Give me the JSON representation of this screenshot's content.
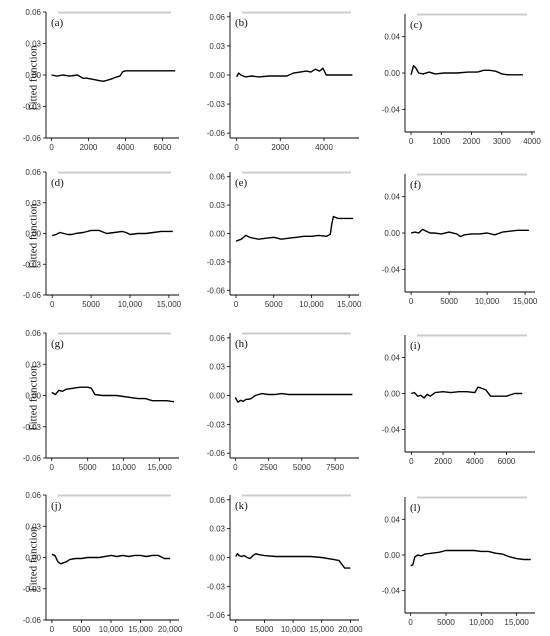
{
  "figure": {
    "ylabel": "Fitted function",
    "colors": {
      "line": "#000000",
      "axis": "#000000",
      "tick_text": "#333333",
      "rug": "#cccccc"
    }
  },
  "chart_data": [
    {
      "label": "(a)",
      "type": "line",
      "xlim": [
        -300,
        6900
      ],
      "ylim": [
        -0.06,
        0.06
      ],
      "xticks": [
        0,
        2000,
        4000,
        6000
      ],
      "xtick_labels": [
        "0",
        "2000",
        "4000",
        "6000"
      ],
      "yticks": [
        -0.06,
        -0.03,
        0,
        0.03,
        0.06
      ],
      "ytick_labels": [
        "-0.06",
        "-0.03",
        "0.00",
        "0.03",
        "0.06"
      ],
      "x": [
        0,
        300,
        600,
        1000,
        1400,
        1700,
        1900,
        2200,
        2500,
        2800,
        3000,
        3200,
        3500,
        3700,
        3850,
        4000,
        4500,
        5000,
        5500,
        6000,
        6500,
        6700
      ],
      "y": [
        0.0,
        -0.001,
        0.0,
        -0.001,
        0.0,
        -0.003,
        -0.003,
        -0.004,
        -0.005,
        -0.006,
        -0.005,
        -0.004,
        -0.002,
        -0.001,
        0.003,
        0.004,
        0.004,
        0.004,
        0.004,
        0.004,
        0.004,
        0.004
      ]
    },
    {
      "label": "(b)",
      "type": "line",
      "xlim": [
        -300,
        5600
      ],
      "ylim": [
        -0.065,
        0.065
      ],
      "xticks": [
        0,
        2000,
        4000
      ],
      "xtick_labels": [
        "0",
        "2000",
        "4000"
      ],
      "yticks": [
        -0.06,
        -0.03,
        0,
        0.03,
        0.06
      ],
      "ytick_labels": [
        "-0.06",
        "-0.03",
        "0.00",
        "0.03",
        "0.06"
      ],
      "x": [
        0,
        100,
        200,
        400,
        700,
        1000,
        1500,
        2000,
        2300,
        2600,
        2900,
        3200,
        3400,
        3600,
        3800,
        3950,
        4100,
        4500,
        5000,
        5300
      ],
      "y": [
        -0.002,
        0.002,
        0.0,
        -0.002,
        -0.001,
        -0.002,
        -0.001,
        -0.001,
        -0.001,
        0.002,
        0.003,
        0.004,
        0.003,
        0.006,
        0.004,
        0.007,
        0.0,
        0.0,
        0.0,
        0.0
      ]
    },
    {
      "label": "(c)",
      "type": "line",
      "xlim": [
        -200,
        4100
      ],
      "ylim": [
        -0.065,
        0.065
      ],
      "xticks": [
        0,
        1000,
        2000,
        3000,
        4000
      ],
      "xtick_labels": [
        "0",
        "1000",
        "2000",
        "3000",
        "4000"
      ],
      "yticks": [
        -0.04,
        0,
        0.04
      ],
      "ytick_labels": [
        "-0.04",
        "0.00",
        "0.04"
      ],
      "x": [
        0,
        80,
        150,
        250,
        400,
        600,
        800,
        1100,
        1500,
        1900,
        2200,
        2400,
        2600,
        2800,
        3000,
        3200,
        3500,
        3700
      ],
      "y": [
        -0.002,
        0.008,
        0.006,
        0.0,
        -0.001,
        0.001,
        -0.001,
        0.0,
        0.0,
        0.001,
        0.001,
        0.003,
        0.003,
        0.002,
        -0.001,
        -0.002,
        -0.002,
        -0.002
      ]
    },
    {
      "label": "(d)",
      "type": "line",
      "xlim": [
        -800,
        16300
      ],
      "ylim": [
        -0.06,
        0.06
      ],
      "xticks": [
        0,
        5000,
        10000,
        15000
      ],
      "xtick_labels": [
        "0",
        "5000",
        "10,000",
        "15,000"
      ],
      "yticks": [
        -0.06,
        -0.03,
        0,
        0.03,
        0.06
      ],
      "ytick_labels": [
        "-0.06",
        "-0.03",
        "0.00",
        "0.03",
        "0.06"
      ],
      "x": [
        0,
        500,
        1000,
        1500,
        2000,
        2500,
        3000,
        4000,
        5000,
        6000,
        7000,
        8000,
        9000,
        9500,
        10000,
        11000,
        12000,
        13000,
        14000,
        15000,
        15500
      ],
      "y": [
        -0.002,
        -0.001,
        0.001,
        0.0,
        -0.001,
        -0.001,
        0.0,
        0.001,
        0.003,
        0.003,
        0.0,
        0.001,
        0.002,
        0.001,
        -0.001,
        0.0,
        0.0,
        0.001,
        0.002,
        0.002,
        0.002
      ]
    },
    {
      "label": "(e)",
      "type": "line",
      "xlim": [
        -800,
        16300
      ],
      "ylim": [
        -0.065,
        0.065
      ],
      "xticks": [
        0,
        5000,
        10000,
        15000
      ],
      "xtick_labels": [
        "0",
        "5000",
        "10,000",
        "15,000"
      ],
      "yticks": [
        -0.06,
        -0.03,
        0,
        0.03,
        0.06
      ],
      "ytick_labels": [
        "-0.06",
        "-0.03",
        "0.00",
        "0.03",
        "0.06"
      ],
      "x": [
        0,
        700,
        1300,
        1800,
        2300,
        3000,
        4000,
        5000,
        6000,
        7000,
        8000,
        9000,
        10000,
        11000,
        12000,
        12500,
        12700,
        12900,
        13500,
        14500,
        15500
      ],
      "y": [
        -0.008,
        -0.006,
        -0.002,
        -0.004,
        -0.005,
        -0.006,
        -0.005,
        -0.004,
        -0.006,
        -0.005,
        -0.004,
        -0.003,
        -0.003,
        -0.002,
        -0.003,
        -0.001,
        0.01,
        0.018,
        0.016,
        0.016,
        0.016
      ]
    },
    {
      "label": "(f)",
      "type": "line",
      "xlim": [
        -800,
        16300
      ],
      "ylim": [
        -0.065,
        0.065
      ],
      "xticks": [
        0,
        5000,
        10000,
        15000
      ],
      "xtick_labels": [
        "0",
        "5000",
        "10,000",
        "15,000"
      ],
      "yticks": [
        -0.04,
        0,
        0.04
      ],
      "ytick_labels": [
        "-0.04",
        "0.00",
        "0.04"
      ],
      "x": [
        0,
        500,
        1000,
        1500,
        2000,
        2500,
        3000,
        4000,
        5000,
        6000,
        6500,
        7000,
        8000,
        9000,
        10000,
        11000,
        12000,
        13000,
        14000,
        15000,
        15500
      ],
      "y": [
        0.0,
        0.001,
        0.0,
        0.004,
        0.002,
        0.0,
        0.0,
        -0.001,
        0.001,
        -0.001,
        -0.004,
        -0.002,
        -0.001,
        -0.001,
        0.0,
        -0.002,
        0.001,
        0.002,
        0.003,
        0.003,
        0.003
      ]
    },
    {
      "label": "(g)",
      "type": "line",
      "xlim": [
        -800,
        17700
      ],
      "ylim": [
        -0.06,
        0.06
      ],
      "xticks": [
        0,
        5000,
        10000,
        15000
      ],
      "xtick_labels": [
        "0",
        "5000",
        "10,000",
        "15,000"
      ],
      "yticks": [
        -0.06,
        -0.03,
        0,
        0.03,
        0.06
      ],
      "ytick_labels": [
        "-0.06",
        "-0.03",
        "0.00",
        "0.03",
        "0.06"
      ],
      "x": [
        0,
        500,
        1000,
        1500,
        2000,
        3000,
        4000,
        5000,
        5500,
        6000,
        7000,
        8000,
        9000,
        10000,
        11000,
        12000,
        13000,
        14000,
        15000,
        16000,
        17000
      ],
      "y": [
        0.003,
        0.001,
        0.005,
        0.004,
        0.006,
        0.007,
        0.008,
        0.008,
        0.007,
        0.001,
        0.0,
        0.0,
        0.0,
        -0.001,
        -0.002,
        -0.003,
        -0.003,
        -0.005,
        -0.005,
        -0.005,
        -0.006
      ]
    },
    {
      "label": "(h)",
      "type": "line",
      "xlim": [
        -400,
        9300
      ],
      "ylim": [
        -0.065,
        0.065
      ],
      "xticks": [
        0,
        2500,
        5000,
        7500
      ],
      "xtick_labels": [
        "0",
        "2500",
        "5000",
        "7500"
      ],
      "yticks": [
        -0.06,
        -0.03,
        0,
        0.03,
        0.06
      ],
      "ytick_labels": [
        "-0.06",
        "-0.03",
        "0.00",
        "0.03",
        "0.06"
      ],
      "x": [
        0,
        200,
        400,
        600,
        800,
        1000,
        1200,
        1500,
        2000,
        2500,
        3000,
        3500,
        4000,
        5000,
        6000,
        7000,
        8000,
        8800
      ],
      "y": [
        -0.002,
        -0.007,
        -0.005,
        -0.006,
        -0.004,
        -0.004,
        -0.003,
        0.0,
        0.002,
        0.001,
        0.001,
        0.002,
        0.001,
        0.001,
        0.001,
        0.001,
        0.001,
        0.001
      ]
    },
    {
      "label": "(i)",
      "type": "line",
      "xlim": [
        -400,
        7800
      ],
      "ylim": [
        -0.065,
        0.065
      ],
      "xticks": [
        0,
        2000,
        4000,
        6000
      ],
      "xtick_labels": [
        "0",
        "2000",
        "4000",
        "6000"
      ],
      "yticks": [
        -0.04,
        0,
        0.04
      ],
      "ytick_labels": [
        "-0.04",
        "0.00",
        "0.04"
      ],
      "x": [
        0,
        200,
        400,
        600,
        800,
        1000,
        1200,
        1500,
        2000,
        2500,
        3000,
        3500,
        4000,
        4200,
        4400,
        4700,
        5000,
        5500,
        6000,
        6500,
        7000
      ],
      "y": [
        0.0,
        0.001,
        -0.003,
        -0.002,
        -0.005,
        -0.001,
        -0.003,
        0.001,
        0.002,
        0.001,
        0.002,
        0.002,
        0.001,
        0.007,
        0.006,
        0.004,
        -0.003,
        -0.003,
        -0.003,
        0.0,
        0.0
      ]
    },
    {
      "label": "(j)",
      "type": "line",
      "xlim": [
        -1000,
        21500
      ],
      "ylim": [
        -0.06,
        0.06
      ],
      "xticks": [
        0,
        5000,
        10000,
        15000,
        20000
      ],
      "xtick_labels": [
        "0",
        "5000",
        "10,000",
        "15,000",
        "20,000"
      ],
      "yticks": [
        -0.06,
        -0.03,
        0,
        0.03,
        0.06
      ],
      "ytick_labels": [
        "-0.06",
        "-0.03",
        "0.00",
        "0.03",
        "0.06"
      ],
      "x": [
        0,
        500,
        1000,
        1500,
        2000,
        2500,
        3000,
        4000,
        5000,
        6000,
        8000,
        10000,
        11000,
        12000,
        13000,
        14000,
        15000,
        16000,
        17000,
        18000,
        19000,
        20000
      ],
      "y": [
        0.003,
        0.002,
        -0.004,
        -0.006,
        -0.005,
        -0.004,
        -0.002,
        -0.001,
        -0.001,
        0.0,
        0.0,
        0.002,
        0.001,
        0.002,
        0.001,
        0.002,
        0.002,
        0.001,
        0.002,
        0.002,
        -0.001,
        -0.001
      ]
    },
    {
      "label": "(k)",
      "type": "line",
      "xlim": [
        -1000,
        21500
      ],
      "ylim": [
        -0.065,
        0.065
      ],
      "xticks": [
        0,
        5000,
        10000,
        15000,
        20000
      ],
      "xtick_labels": [
        "0",
        "5000",
        "10,000",
        "15,000",
        "20,000"
      ],
      "yticks": [
        -0.06,
        -0.03,
        0,
        0.03,
        0.06
      ],
      "ytick_labels": [
        "-0.06",
        "-0.03",
        "0.00",
        "0.03",
        "0.06"
      ],
      "x": [
        0,
        300,
        600,
        1000,
        1500,
        2000,
        2500,
        3000,
        3500,
        4000,
        5000,
        7000,
        9000,
        11000,
        13000,
        15000,
        17000,
        18000,
        19000,
        20000
      ],
      "y": [
        0.001,
        0.004,
        0.002,
        0.001,
        0.002,
        0.0,
        -0.001,
        0.002,
        0.004,
        0.003,
        0.002,
        0.001,
        0.001,
        0.001,
        0.001,
        0.0,
        -0.002,
        -0.003,
        -0.011,
        -0.011
      ]
    },
    {
      "label": "(l)",
      "type": "line",
      "xlim": [
        -800,
        17600
      ],
      "ylim": [
        -0.065,
        0.065
      ],
      "xticks": [
        0,
        5000,
        10000,
        15000
      ],
      "xtick_labels": [
        "0",
        "5000",
        "10,000",
        "15,000"
      ],
      "yticks": [
        -0.04,
        0,
        0.04
      ],
      "ytick_labels": [
        "-0.04",
        "0.00",
        "0.04"
      ],
      "x": [
        0,
        300,
        600,
        1000,
        1500,
        2000,
        3000,
        4000,
        5000,
        7000,
        9000,
        10000,
        11000,
        12000,
        13000,
        14000,
        15000,
        16000,
        17000
      ],
      "y": [
        -0.012,
        -0.011,
        -0.002,
        0.0,
        -0.001,
        0.001,
        0.002,
        0.003,
        0.005,
        0.005,
        0.005,
        0.004,
        0.004,
        0.002,
        0.001,
        -0.002,
        -0.004,
        -0.005,
        -0.005
      ]
    }
  ]
}
